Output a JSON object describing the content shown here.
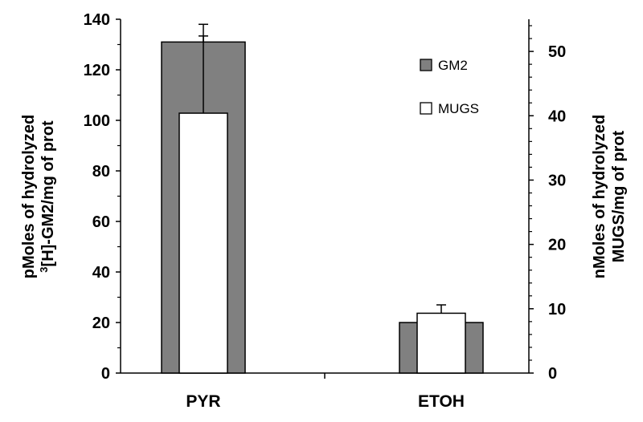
{
  "chart_data": {
    "type": "bar",
    "categories": [
      "PYR",
      "ETOH"
    ],
    "series": [
      {
        "name": "GM2",
        "axis": "left",
        "values": [
          131,
          20
        ],
        "error": [
          7,
          0
        ],
        "color": "#808080"
      },
      {
        "name": "MUGS",
        "axis": "right",
        "values": [
          40.4,
          9.3
        ],
        "error": [
          12,
          1.3
        ],
        "color": "#ffffff"
      }
    ],
    "y_left": {
      "label_line1": "pMoles of hydrolyzed",
      "label_line2_sup": "3",
      "label_line2": "[H]-GM2/mg of prot",
      "ylim": [
        0,
        140
      ],
      "ticks": [
        "0",
        "20",
        "40",
        "60",
        "80",
        "100",
        "120",
        "140"
      ]
    },
    "y_right": {
      "label_line1": "nMoles of hydrolyzed",
      "label_line2": "MUGS/mg of prot",
      "ylim": [
        0,
        55
      ],
      "ticks": [
        "0",
        "10",
        "20",
        "30",
        "40",
        "50"
      ]
    },
    "legend": {
      "placement": "top-right",
      "items": [
        {
          "label": "GM2",
          "color": "#808080"
        },
        {
          "label": "MUGS",
          "color": "#ffffff"
        }
      ]
    },
    "grid": false
  }
}
